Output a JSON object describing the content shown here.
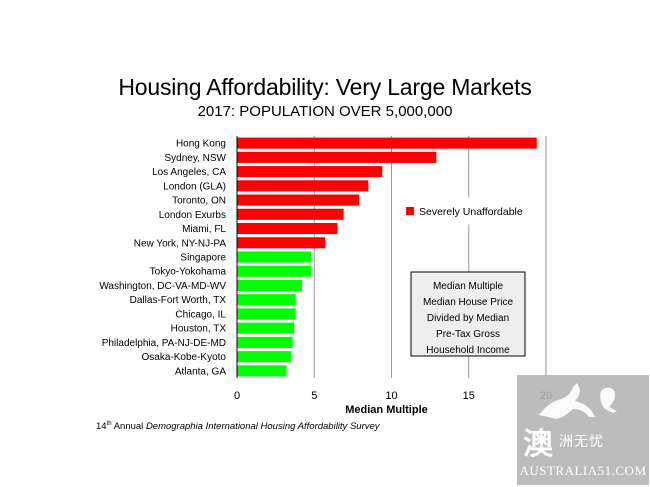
{
  "title": "Housing Affordability: Very Large Markets",
  "subtitle": "2017: POPULATION OVER 5,000,000",
  "footnote": {
    "edition_number": "14",
    "edition_suffix": "th",
    "prefix": " Annual ",
    "italic": "Demographia International Housing Affordability Survey"
  },
  "legend": {
    "label": "Severely Unaffordable",
    "color": "#ff0000",
    "position": "right-middle"
  },
  "annotation_box": [
    "Median Multiple",
    "Median House Price",
    "Divided by Median",
    "Pre-Tax Gross",
    "Household Income"
  ],
  "watermark": {
    "cn_big": "澳",
    "cn_small": "洲无忧",
    "url": "AUSTRALIA51.COM"
  },
  "colors": {
    "unaffordable": "#ff0000",
    "other": "#00ff00",
    "grid": "#999999"
  },
  "chart_data": {
    "type": "bar",
    "orientation": "horizontal",
    "categories": [
      "Hong Kong",
      "Sydney, NSW",
      "Los Angeles, CA",
      "London (GLA)",
      "Toronto, ON",
      "London Exurbs",
      "Miami, FL",
      "New York, NY-NJ-PA",
      "Singapore",
      "Tokyo-Yokohama",
      "Washington, DC-VA-MD-WV",
      "Dallas-Fort Worth, TX",
      "Chicago, IL",
      "Houston, TX",
      "Philadelphia, PA-NJ-DE-MD",
      "Osaka-Kobe-Kyoto",
      "Atlanta, GA"
    ],
    "values": [
      19.4,
      12.9,
      9.4,
      8.5,
      7.9,
      6.9,
      6.5,
      5.7,
      4.8,
      4.8,
      4.2,
      3.8,
      3.8,
      3.7,
      3.6,
      3.5,
      3.2
    ],
    "severely_unaffordable": [
      true,
      true,
      true,
      true,
      true,
      true,
      true,
      true,
      false,
      false,
      false,
      false,
      false,
      false,
      false,
      false,
      false
    ],
    "xlabel": "Median Multiple",
    "ylabel": "",
    "xlim": [
      0,
      20
    ],
    "xticks": [
      0,
      5,
      10,
      15,
      20
    ],
    "grid": "vertical"
  }
}
